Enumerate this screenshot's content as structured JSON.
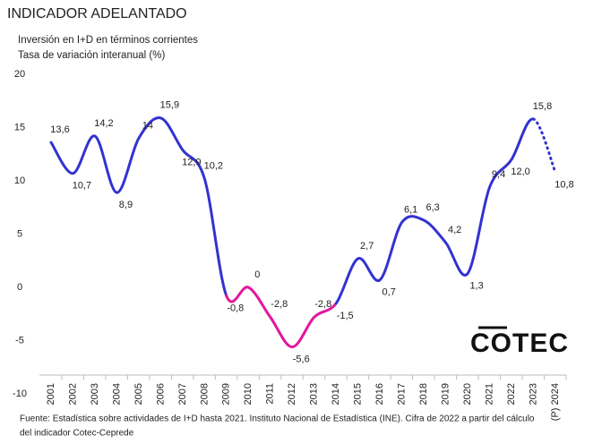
{
  "chart_data": {
    "type": "line",
    "title": "INDICADOR ADELANTADO",
    "subtitle": [
      "Inversión en I+D en términos corrientes",
      "Tasa de variación interanual (%)"
    ],
    "categories": [
      "2001",
      "2002",
      "2003",
      "2004",
      "2005",
      "2006",
      "2007",
      "2008",
      "2009",
      "2010",
      "2011",
      "2012",
      "2013",
      "2014",
      "2015",
      "2016",
      "2017",
      "2018",
      "2019",
      "2020",
      "2021",
      "2022",
      "2023",
      "(P) 2024"
    ],
    "values": [
      13.6,
      10.7,
      14.2,
      8.9,
      14,
      15.9,
      12.9,
      10.2,
      -0.8,
      0,
      -2.8,
      -5.6,
      -2.8,
      -1.5,
      2.7,
      0.7,
      6.1,
      6.3,
      4.2,
      1.3,
      9.4,
      12.0,
      15.8,
      10.8
    ],
    "value_labels": [
      "13,6",
      "10,7",
      "14,2",
      "8,9",
      "14",
      "15,9",
      "12,9",
      "10,2",
      "-0,8",
      "0",
      "-2,8",
      "-5,6",
      "-2,8",
      "-1,5",
      "2,7",
      "0,7",
      "6,1",
      "6,3",
      "4,2",
      "1,3",
      "9,4",
      "12,0",
      "15,8",
      "10,8"
    ],
    "segments": [
      {
        "from": 0,
        "to": 8,
        "color": "#3232d2",
        "style": "solid"
      },
      {
        "from": 8,
        "to": 13,
        "color": "#e4169c",
        "style": "solid"
      },
      {
        "from": 13,
        "to": 22,
        "color": "#3232d2",
        "style": "solid"
      },
      {
        "from": 22,
        "to": 23,
        "color": "#3232d2",
        "style": "dotted"
      }
    ],
    "ylim": [
      -10,
      20
    ],
    "yticks": [
      -10,
      -5,
      0,
      5,
      10,
      15,
      20
    ],
    "grid": false,
    "source": [
      "Fuente: Estadística sobre actividades de I+D hasta 2021. Instituto Nacional de Estadística (INE). Cifra de 2022 a partir del cálculo",
      "del indicador Cotec-Ceprede"
    ],
    "logo": "COTEC"
  }
}
